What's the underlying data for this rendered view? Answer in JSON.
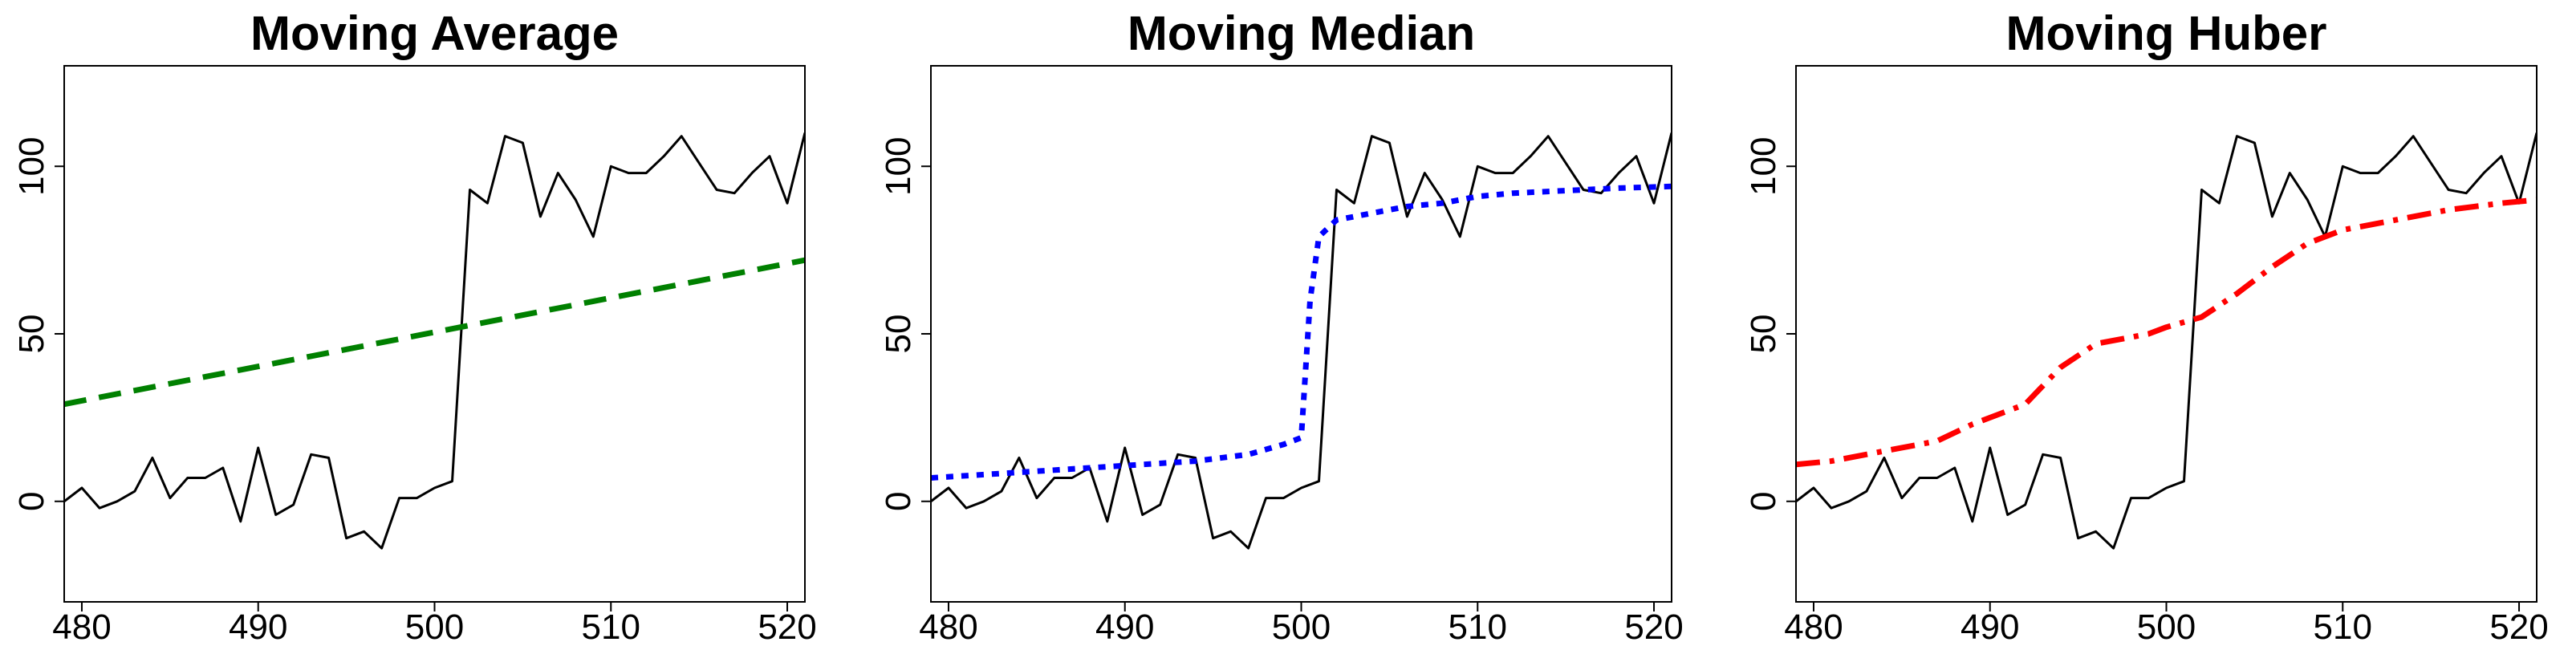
{
  "chart_data": [
    {
      "type": "line",
      "title": "Moving Average",
      "xlim": [
        479,
        521
      ],
      "ylim": [
        -30,
        130
      ],
      "xticks": [
        "480",
        "490",
        "500",
        "510",
        "520"
      ],
      "yticks": [
        "0",
        "50",
        "100"
      ],
      "series": [
        {
          "role": "raw",
          "color": "#000000",
          "style": "solid",
          "x": [
            479,
            480,
            481,
            482,
            483,
            484,
            485,
            486,
            487,
            488,
            489,
            490,
            491,
            492,
            493,
            494,
            495,
            496,
            497,
            498,
            499,
            500,
            501,
            502,
            503,
            504,
            505,
            506,
            507,
            508,
            509,
            510,
            511,
            512,
            513,
            514,
            515,
            516,
            517,
            518,
            519,
            520,
            521
          ],
          "y": [
            0,
            4,
            -2,
            0,
            3,
            13,
            1,
            7,
            7,
            10,
            -6,
            16,
            -4,
            -1,
            14,
            13,
            -11,
            -9,
            -14,
            1,
            1,
            4,
            6,
            93,
            89,
            109,
            107,
            85,
            98,
            90,
            79,
            100,
            98,
            98,
            103,
            109,
            101,
            93,
            92,
            98,
            103,
            89,
            110
          ]
        },
        {
          "role": "smooth",
          "color": "#008000",
          "style": "dashed",
          "x": [
            479,
            521
          ],
          "y": [
            29,
            72
          ]
        }
      ]
    },
    {
      "type": "line",
      "title": "Moving Median",
      "xlim": [
        479,
        521
      ],
      "ylim": [
        -30,
        130
      ],
      "xticks": [
        "480",
        "490",
        "500",
        "510",
        "520"
      ],
      "yticks": [
        "0",
        "50",
        "100"
      ],
      "series": [
        {
          "role": "raw",
          "color": "#000000",
          "style": "solid",
          "x": [
            479,
            480,
            481,
            482,
            483,
            484,
            485,
            486,
            487,
            488,
            489,
            490,
            491,
            492,
            493,
            494,
            495,
            496,
            497,
            498,
            499,
            500,
            501,
            502,
            503,
            504,
            505,
            506,
            507,
            508,
            509,
            510,
            511,
            512,
            513,
            514,
            515,
            516,
            517,
            518,
            519,
            520,
            521
          ],
          "y": [
            0,
            4,
            -2,
            0,
            3,
            13,
            1,
            7,
            7,
            10,
            -6,
            16,
            -4,
            -1,
            14,
            13,
            -11,
            -9,
            -14,
            1,
            1,
            4,
            6,
            93,
            89,
            109,
            107,
            85,
            98,
            90,
            79,
            100,
            98,
            98,
            103,
            109,
            101,
            93,
            92,
            98,
            103,
            89,
            110
          ]
        },
        {
          "role": "smooth",
          "color": "#0000ff",
          "style": "dotted",
          "x": [
            479,
            482,
            485,
            488,
            491,
            494,
            497,
            499,
            500,
            500.5,
            501,
            502,
            504,
            506,
            508,
            510,
            512,
            514,
            516,
            518,
            521
          ],
          "y": [
            7,
            8,
            9,
            10,
            11,
            12,
            14,
            17,
            19,
            60,
            79,
            84,
            86,
            88,
            89,
            91,
            92,
            92.5,
            93,
            93.5,
            94
          ]
        }
      ]
    },
    {
      "type": "line",
      "title": "Moving Huber",
      "xlim": [
        479,
        521
      ],
      "ylim": [
        -30,
        130
      ],
      "xticks": [
        "480",
        "490",
        "500",
        "510",
        "520"
      ],
      "yticks": [
        "0",
        "50",
        "100"
      ],
      "series": [
        {
          "role": "raw",
          "color": "#000000",
          "style": "solid",
          "x": [
            479,
            480,
            481,
            482,
            483,
            484,
            485,
            486,
            487,
            488,
            489,
            490,
            491,
            492,
            493,
            494,
            495,
            496,
            497,
            498,
            499,
            500,
            501,
            502,
            503,
            504,
            505,
            506,
            507,
            508,
            509,
            510,
            511,
            512,
            513,
            514,
            515,
            516,
            517,
            518,
            519,
            520,
            521
          ],
          "y": [
            0,
            4,
            -2,
            0,
            3,
            13,
            1,
            7,
            7,
            10,
            -6,
            16,
            -4,
            -1,
            14,
            13,
            -11,
            -9,
            -14,
            1,
            1,
            4,
            6,
            93,
            89,
            109,
            107,
            85,
            98,
            90,
            79,
            100,
            98,
            98,
            103,
            109,
            101,
            93,
            92,
            98,
            103,
            89,
            110
          ]
        },
        {
          "role": "smooth",
          "color": "#ff0000",
          "style": "dashdot",
          "x": [
            479,
            481,
            484,
            487,
            489,
            492,
            494,
            496,
            499,
            500,
            502,
            504,
            506,
            508,
            510,
            513,
            516,
            519,
            521
          ],
          "y": [
            11,
            12,
            15,
            18,
            23,
            29,
            40,
            47,
            50,
            52,
            55,
            62,
            70,
            77,
            81,
            84,
            87,
            89,
            90
          ]
        }
      ]
    }
  ]
}
